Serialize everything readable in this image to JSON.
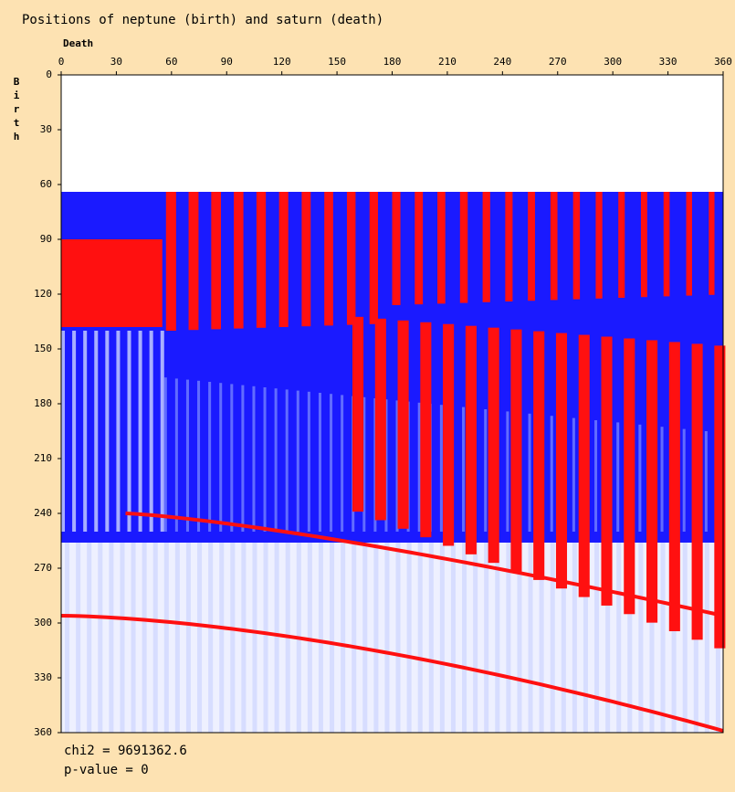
{
  "chart_data": {
    "type": "heatmap",
    "title": "Positions of neptune (birth) and saturn (death)",
    "xlabel": "Death",
    "ylabel": "Birth",
    "xlim": [
      0,
      360
    ],
    "xticks": [
      0,
      30,
      60,
      90,
      120,
      150,
      180,
      210,
      240,
      270,
      300,
      330,
      360
    ],
    "ylim": [
      0,
      360
    ],
    "yticks": [
      0,
      30,
      60,
      90,
      120,
      150,
      180,
      210,
      240,
      270,
      300,
      330,
      360
    ],
    "annotations": [
      "chi2 = 9691362.6",
      "p-value = 0"
    ]
  }
}
